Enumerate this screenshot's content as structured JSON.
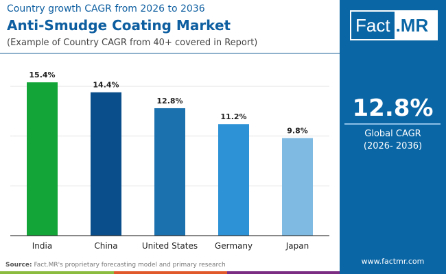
{
  "header": {
    "subtitle": "Country growth CAGR from 2026 to 2036",
    "title": "Anti-Smudge Coating Market",
    "note": "(Example of Country CAGR from 40+ covered in Report)"
  },
  "logo": {
    "part1": "Fact",
    "part2": ".MR"
  },
  "panel": {
    "value": "12.8%",
    "label": "Global CAGR",
    "period": "(2026- 2036)",
    "url": "www.factmr.com",
    "color": "#0b66a5"
  },
  "footer": {
    "source_label": "Source:",
    "source_text": "Fact.MR's proprietary forecasting model and primary research"
  },
  "chart_data": {
    "type": "bar",
    "categories": [
      "India",
      "China",
      "United States",
      "Germany",
      "Japan"
    ],
    "values": [
      15.4,
      14.4,
      12.8,
      11.2,
      9.8
    ],
    "data_labels": [
      "15.4%",
      "14.4%",
      "12.8%",
      "11.2%",
      "9.8%"
    ],
    "colors": [
      "#13a538",
      "#0a4f8b",
      "#1b70ae",
      "#2d92d6",
      "#7fbae2"
    ],
    "ylim": [
      0,
      15
    ],
    "grid": true,
    "xlabel": "",
    "ylabel": ""
  }
}
